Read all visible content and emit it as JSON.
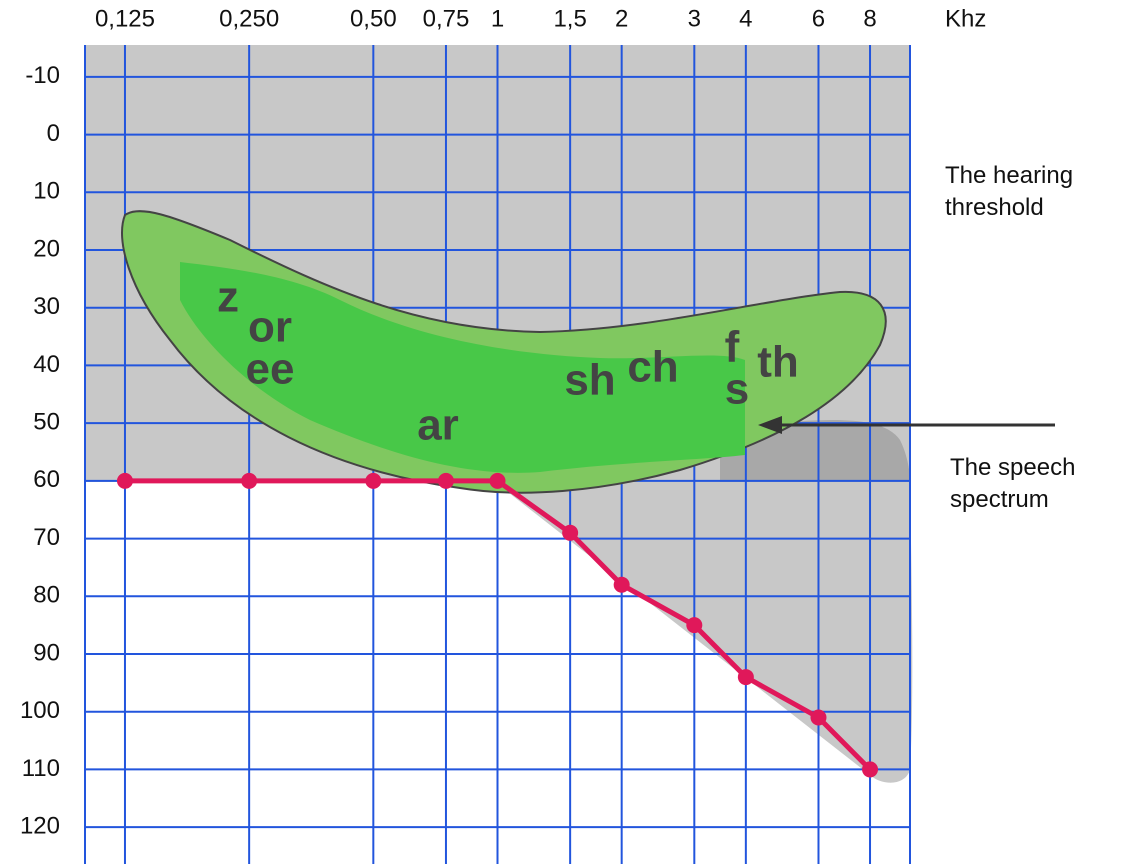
{
  "chart_data": {
    "type": "line",
    "x_unit_label": "Khz",
    "x": [
      0.125,
      0.25,
      0.5,
      0.75,
      1,
      1.5,
      2,
      3,
      4,
      6,
      8
    ],
    "series": [
      {
        "color": "#e0185a",
        "values": [
          60,
          60,
          60,
          60,
          60,
          69,
          78,
          85,
          94,
          101,
          110
        ]
      }
    ],
    "xlim": [
      0.1,
      10
    ],
    "xticks": [
      {
        "value": 0.125,
        "label": "0,125"
      },
      {
        "value": 0.25,
        "label": "0,250"
      },
      {
        "value": 0.5,
        "label": "0,50"
      },
      {
        "value": 0.75,
        "label": "0,75"
      },
      1,
      {
        "value": 1.5,
        "label": "1,5"
      },
      2,
      3,
      4,
      6,
      8
    ],
    "ylim": [
      -15,
      125
    ],
    "yticks": [
      -10,
      0,
      10,
      20,
      30,
      40,
      50,
      60,
      70,
      80,
      90,
      100,
      110,
      120
    ],
    "log_x": true,
    "y_inverted": true,
    "grid": true,
    "grid_color": "#2255dd",
    "speech_sounds": [
      "z",
      "or",
      "ee",
      "ar",
      "sh",
      "ch",
      "f",
      "s",
      "th"
    ],
    "annotations": [
      "The hearing threshold",
      "The speech spectrum"
    ]
  }
}
